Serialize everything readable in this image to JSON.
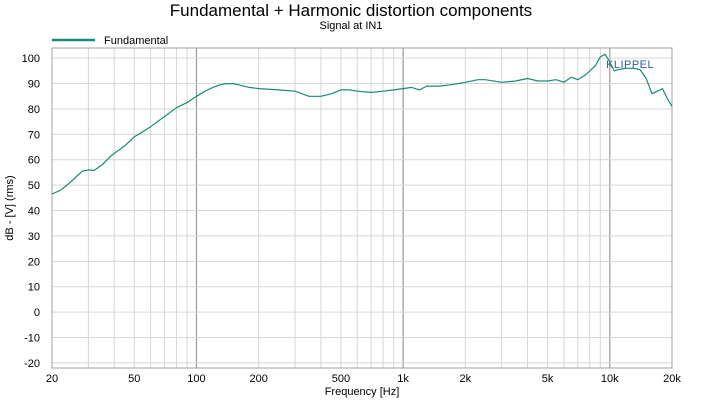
{
  "chart_data": {
    "type": "line",
    "title": "Fundamental + Harmonic distortion components",
    "subtitle": "Signal at IN1",
    "xlabel": "Frequency [Hz]",
    "ylabel": "dB - [V] (rms)",
    "x_scale": "log",
    "xlim": [
      20,
      20000
    ],
    "ylim": [
      -22,
      104
    ],
    "x_ticks": [
      20,
      50,
      100,
      200,
      500,
      1000,
      2000,
      5000,
      10000,
      20000
    ],
    "x_tick_labels": [
      "20",
      "50",
      "100",
      "200",
      "500",
      "1k",
      "2k",
      "5k",
      "10k",
      "20k"
    ],
    "y_ticks": [
      -20,
      -10,
      0,
      10,
      20,
      30,
      40,
      50,
      60,
      70,
      80,
      90,
      100
    ],
    "y_tick_labels": [
      "-20",
      "-10",
      "0",
      "10",
      "20",
      "30",
      "40",
      "50",
      "60",
      "70",
      "80",
      "90",
      "100"
    ],
    "grid": true,
    "legend_position": "top-left",
    "watermark": "KLIPPEL",
    "series": [
      {
        "name": "Fundamental",
        "color": "#1a8a78",
        "x": [
          20,
          22,
          24,
          26,
          28,
          30,
          32,
          35,
          38,
          40,
          45,
          50,
          55,
          60,
          70,
          80,
          90,
          100,
          110,
          120,
          130,
          140,
          150,
          160,
          180,
          200,
          250,
          300,
          350,
          400,
          450,
          500,
          550,
          600,
          700,
          800,
          900,
          1000,
          1100,
          1200,
          1300,
          1500,
          1700,
          2000,
          2300,
          2500,
          3000,
          3500,
          4000,
          4500,
          5000,
          5500,
          6000,
          6500,
          7000,
          7500,
          8000,
          8500,
          9000,
          9500,
          10000,
          10500,
          11000,
          12000,
          13000,
          14000,
          15000,
          16000,
          17000,
          18000,
          19000,
          20000
        ],
        "y": [
          46.5,
          48,
          50.5,
          53,
          55.5,
          56,
          55.8,
          58,
          61,
          62.5,
          65.5,
          69,
          71,
          73,
          77,
          80.5,
          82.5,
          85,
          87,
          88.5,
          89.5,
          90,
          90,
          89.5,
          88.5,
          88,
          87.5,
          87,
          85,
          85,
          86,
          87.5,
          87.5,
          87,
          86.5,
          87,
          87.5,
          88,
          88.5,
          87.5,
          89,
          89,
          89.5,
          90.5,
          91.5,
          91.5,
          90.5,
          91,
          92,
          91,
          91,
          91.5,
          90.5,
          92.5,
          91.5,
          93,
          95,
          97,
          100.5,
          101.5,
          98.5,
          95,
          95.5,
          96,
          96,
          95.5,
          92,
          86,
          87,
          88,
          84,
          81
        ]
      }
    ]
  }
}
